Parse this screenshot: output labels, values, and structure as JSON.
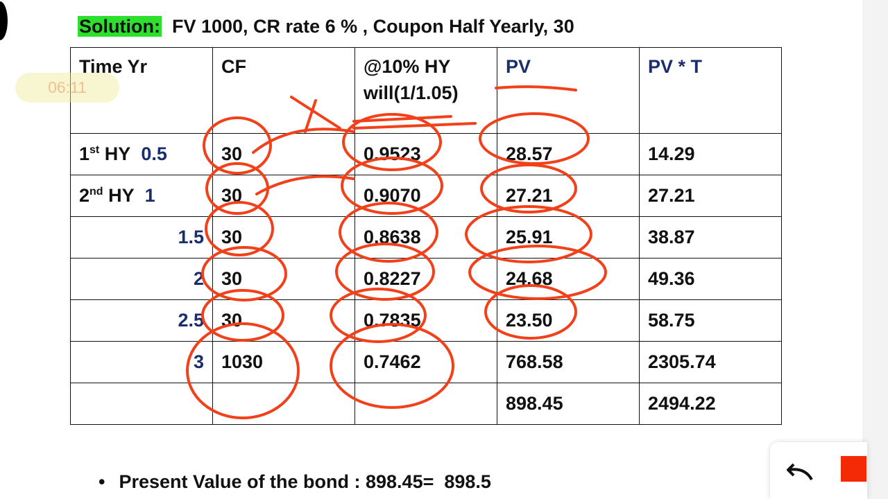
{
  "header": {
    "label": "Solution:",
    "text": "FV 1000, CR rate 6 % , Coupon Half Yearly, 30"
  },
  "overlay": {
    "timer": "06:11"
  },
  "table": {
    "columns": [
      [
        "Time Yr"
      ],
      [
        "CF"
      ],
      [
        "@10% HY",
        "will(1/1.05)"
      ],
      [
        "PV"
      ],
      [
        "PV * T"
      ]
    ],
    "rows": [
      {
        "ordinal": "1",
        "sup": "st",
        "unit": "HY",
        "time": "0.5",
        "cells": [
          "30",
          "0.9523",
          "28.57",
          "14.29"
        ]
      },
      {
        "ordinal": "2",
        "sup": "nd",
        "unit": "HY",
        "time": "1",
        "cells": [
          "30",
          "0.9070",
          "27.21",
          "27.21"
        ]
      },
      {
        "time": "1.5",
        "cells": [
          "30",
          "0.8638",
          "25.91",
          "38.87"
        ]
      },
      {
        "time": "2",
        "cells": [
          "30",
          "0.8227",
          "24.68",
          "49.36"
        ]
      },
      {
        "time": "2.5",
        "cells": [
          "30",
          "0.7835",
          "23.50",
          "58.75"
        ]
      },
      {
        "time": "3",
        "cells": [
          "1030",
          "0.7462",
          "768.58",
          "2305.74"
        ]
      }
    ],
    "totals": [
      "898.45",
      "2494.22"
    ]
  },
  "bullet": "Present Value of the bond : 898.45=  898.5"
}
